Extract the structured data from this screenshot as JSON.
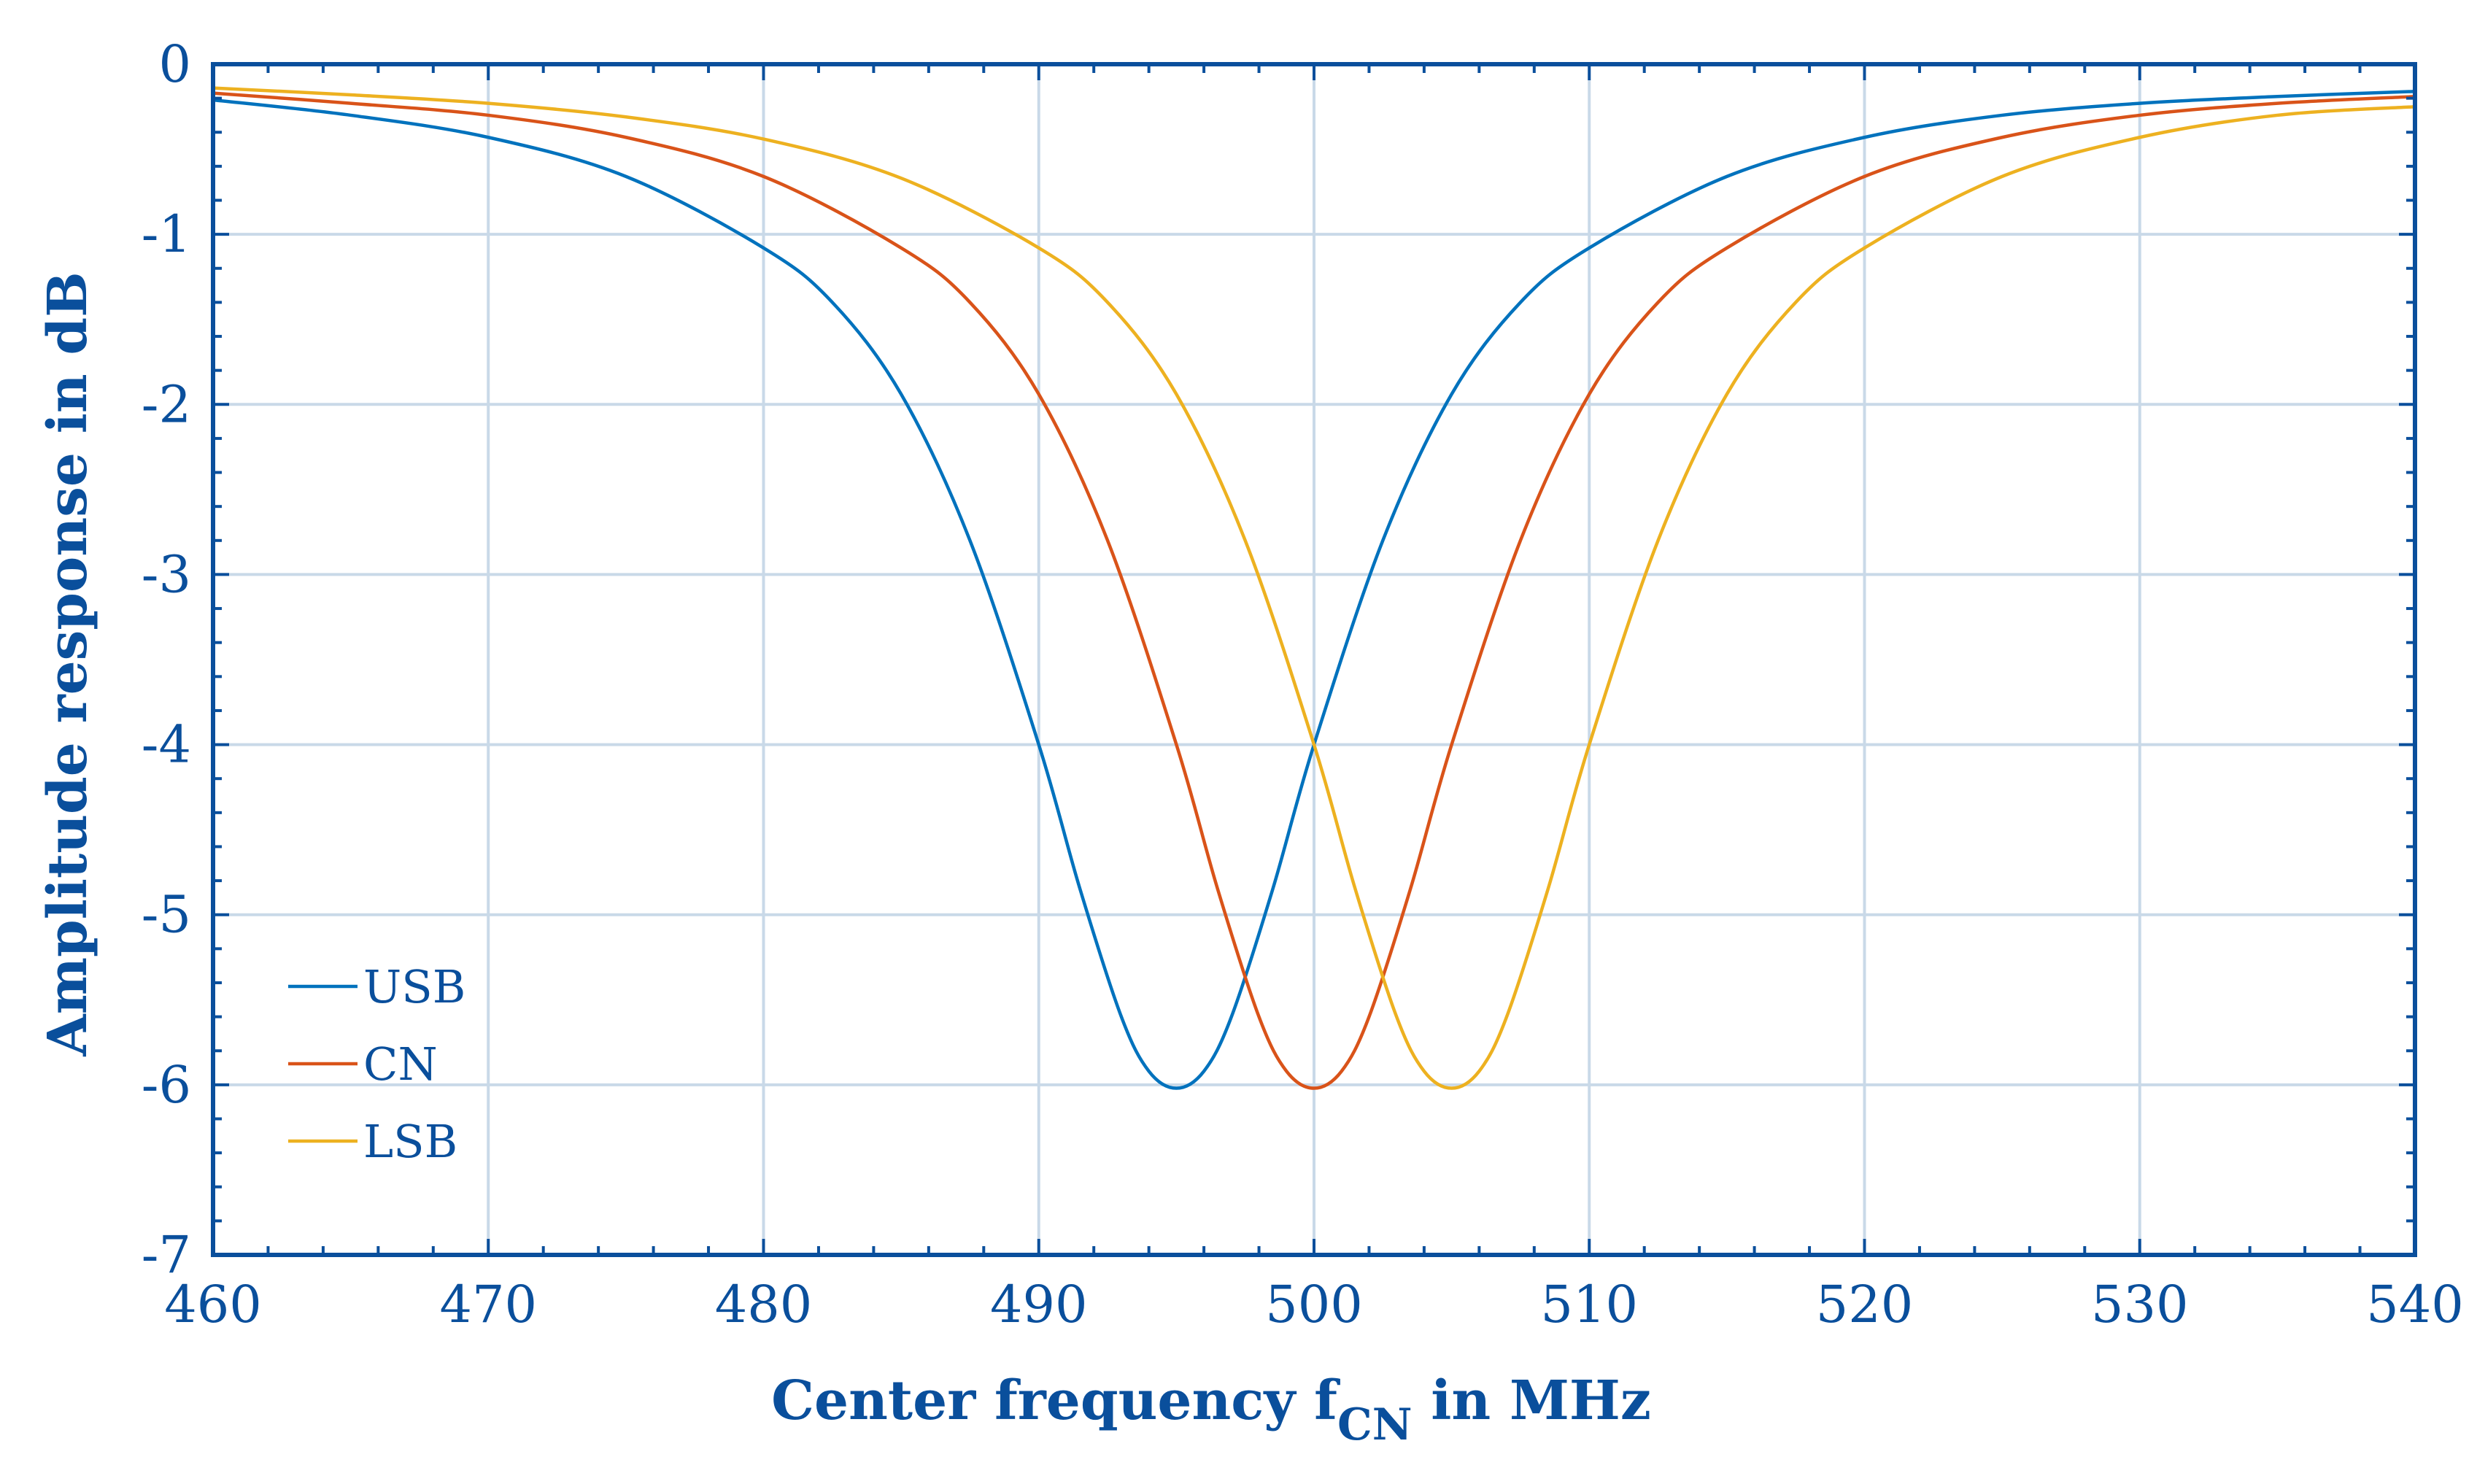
{
  "chart_data": {
    "type": "line",
    "title": "",
    "xlabel_main": "Center frequency f",
    "xlabel_sub": "CN",
    "xlabel_tail": " in MHz",
    "ylabel": "Amplitude response in dB",
    "xlim": [
      460,
      540
    ],
    "ylim": [
      -7,
      0
    ],
    "x_ticks": [
      460,
      470,
      480,
      490,
      500,
      510,
      520,
      530,
      540
    ],
    "y_ticks": [
      0,
      -1,
      -2,
      -3,
      -4,
      -5,
      -6,
      -7
    ],
    "x_tick_labels": [
      "460",
      "470",
      "480",
      "490",
      "500",
      "510",
      "520",
      "530",
      "540"
    ],
    "y_tick_labels": [
      "0",
      "-1",
      "-2",
      "-3",
      "-4",
      "-5",
      "-6",
      "-7"
    ],
    "grid": true,
    "legend_position": "bottom-left",
    "series": [
      {
        "name": "USB",
        "color": "#0072BD",
        "x": [
          460,
          465,
          470,
          475,
          480,
          482.5,
          485,
          487.5,
          490,
          491.5,
          493,
          494,
          495,
          496,
          497,
          498.5,
          500,
          502.5,
          505,
          507.5,
          510,
          515,
          520,
          525,
          530,
          535,
          540
        ],
        "y": [
          -0.21,
          -0.3,
          -0.43,
          -0.66,
          -1.08,
          -1.4,
          -1.94,
          -2.8,
          -4.0,
          -4.85,
          -5.6,
          -5.92,
          -6.02,
          -5.92,
          -5.6,
          -4.85,
          -4.0,
          -2.8,
          -1.94,
          -1.4,
          -1.08,
          -0.66,
          -0.43,
          -0.3,
          -0.23,
          -0.19,
          -0.16
        ]
      },
      {
        "name": "CN",
        "color": "#D95319",
        "x": [
          460,
          465,
          470,
          475,
          480,
          485,
          487.5,
          490,
          492.5,
          495,
          496.5,
          498,
          499,
          500,
          501,
          502,
          503.5,
          505,
          507.5,
          510,
          512.5,
          515,
          520,
          525,
          530,
          535,
          540
        ],
        "y": [
          -0.17,
          -0.23,
          -0.3,
          -0.43,
          -0.66,
          -1.08,
          -1.4,
          -1.94,
          -2.8,
          -4.0,
          -4.85,
          -5.6,
          -5.92,
          -6.02,
          -5.92,
          -5.6,
          -4.85,
          -4.0,
          -2.8,
          -1.94,
          -1.4,
          -1.08,
          -0.66,
          -0.43,
          -0.3,
          -0.23,
          -0.19
        ]
      },
      {
        "name": "LSB",
        "color": "#EDB120",
        "x": [
          460,
          465,
          470,
          475,
          480,
          485,
          490,
          492.5,
          495,
          497.5,
          500,
          501.5,
          503,
          504,
          505,
          506,
          507,
          508.5,
          510,
          512.5,
          515,
          517.5,
          520,
          525,
          530,
          535,
          540
        ],
        "y": [
          -0.14,
          -0.18,
          -0.23,
          -0.31,
          -0.44,
          -0.67,
          -1.08,
          -1.4,
          -1.94,
          -2.8,
          -4.0,
          -4.85,
          -5.6,
          -5.92,
          -6.02,
          -5.92,
          -5.6,
          -4.85,
          -4.0,
          -2.8,
          -1.94,
          -1.4,
          -1.08,
          -0.66,
          -0.43,
          -0.3,
          -0.25
        ]
      }
    ]
  },
  "colors": {
    "axis": "#0a4f9c",
    "grid": "#c9d9e8"
  }
}
